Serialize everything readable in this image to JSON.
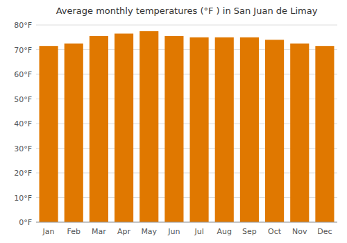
{
  "chart_data": {
    "type": "bar",
    "title": "Average monthly temperatures (°F ) in San Juan de Limay",
    "categories": [
      "Jan",
      "Feb",
      "Mar",
      "Apr",
      "May",
      "Jun",
      "Jul",
      "Aug",
      "Sep",
      "Oct",
      "Nov",
      "Dec"
    ],
    "values": [
      71.5,
      72.5,
      75.5,
      76.5,
      77.5,
      75.5,
      75.0,
      75.0,
      75.0,
      74.0,
      72.5,
      71.5
    ],
    "color": "#E07800",
    "ylim": [
      0,
      80
    ],
    "yticks": [
      {
        "value": 0,
        "label": "0°F"
      },
      {
        "value": 10,
        "label": "10°F"
      },
      {
        "value": 20,
        "label": "20°F"
      },
      {
        "value": 30,
        "label": "30°F"
      },
      {
        "value": 40,
        "label": "40°F"
      },
      {
        "value": 50,
        "label": "50°F"
      },
      {
        "value": 60,
        "label": "60°F"
      },
      {
        "value": 70,
        "label": "70°F"
      },
      {
        "value": 80,
        "label": "80°F"
      }
    ],
    "grid": true
  }
}
